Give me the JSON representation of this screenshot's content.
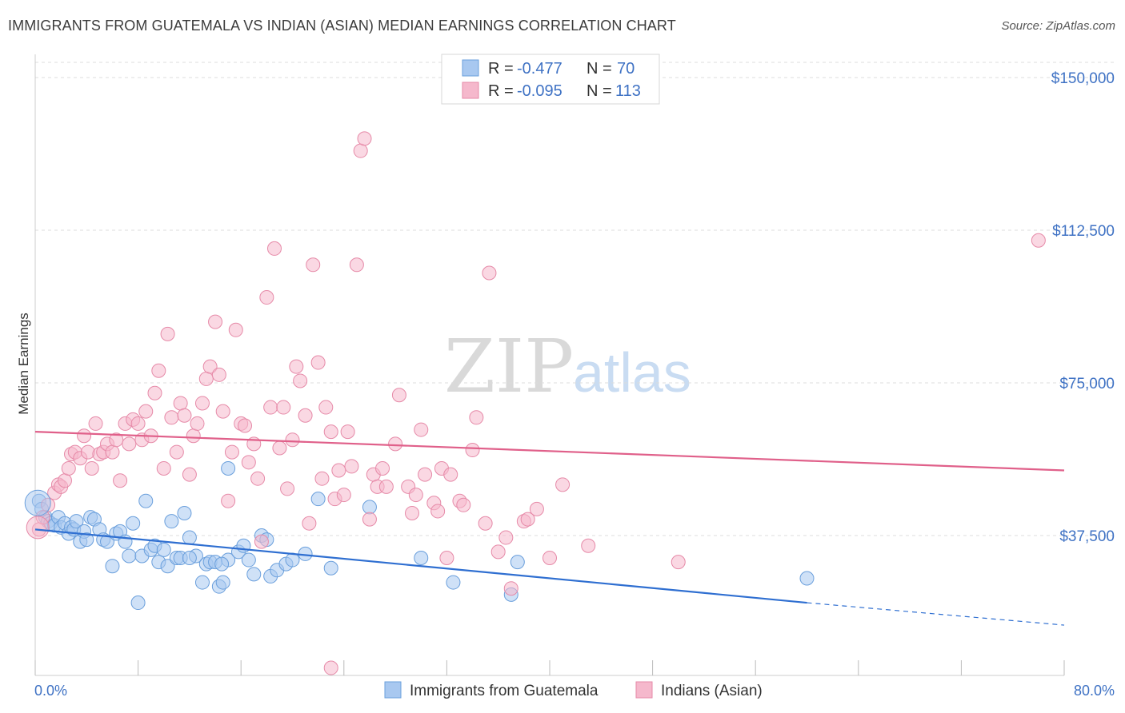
{
  "header": {
    "title": "IMMIGRANTS FROM GUATEMALA VS INDIAN (ASIAN) MEDIAN EARNINGS CORRELATION CHART",
    "source": "Source: ZipAtlas.com"
  },
  "watermark": {
    "zip": "ZIP",
    "atlas": "atlas"
  },
  "legend_top": [
    {
      "r_label": "R = ",
      "r_value": "-0.477",
      "n_label": "N = ",
      "n_value": "70",
      "color": "#a8c8f0"
    },
    {
      "r_label": "R = ",
      "r_value": "-0.095",
      "n_label": "N = ",
      "n_value": "113",
      "color": "#f5b8cc"
    }
  ],
  "legend_bottom": [
    {
      "label": "Immigrants from Guatemala",
      "color": "#a8c8f0"
    },
    {
      "label": "Indians (Asian)",
      "color": "#f5b8cc"
    }
  ],
  "chart_data": {
    "type": "scatter",
    "title": "IMMIGRANTS FROM GUATEMALA VS INDIAN (ASIAN) MEDIAN EARNINGS CORRELATION CHART",
    "xlabel": "",
    "ylabel": "Median Earnings",
    "xlim": [
      0,
      80
    ],
    "ylim": [
      0,
      160000
    ],
    "x_tick_labels": [
      "0.0%",
      "80.0%"
    ],
    "y_ticks": [
      37500,
      75000,
      112500,
      150000
    ],
    "y_tick_labels": [
      "$37,500",
      "$75,000",
      "$112,500",
      "$150,000"
    ],
    "grid": true,
    "series": [
      {
        "name": "Immigrants from Guatemala",
        "color": "#a8c8f0",
        "stroke": "#6a9fdc",
        "trend_color": "#2f6fd1",
        "trend": {
          "x0": 0,
          "y0": 39000,
          "x1": 60,
          "y1": 21000,
          "dashed_to_x": 80,
          "dashed_to_y": 15500
        },
        "points": [
          [
            0.3,
            46000
          ],
          [
            0.5,
            44000
          ],
          [
            0.8,
            42000
          ],
          [
            1.0,
            41000
          ],
          [
            1.2,
            40500
          ],
          [
            1.5,
            40000
          ],
          [
            1.8,
            42000
          ],
          [
            2.0,
            39500
          ],
          [
            2.3,
            40500
          ],
          [
            2.6,
            38000
          ],
          [
            2.8,
            39500
          ],
          [
            3.0,
            39000
          ],
          [
            3.2,
            41000
          ],
          [
            3.5,
            36000
          ],
          [
            3.8,
            38500
          ],
          [
            4.0,
            36500
          ],
          [
            4.3,
            42000
          ],
          [
            4.6,
            41500
          ],
          [
            5.0,
            39000
          ],
          [
            5.3,
            36500
          ],
          [
            5.6,
            36000
          ],
          [
            6.0,
            30000
          ],
          [
            6.3,
            38000
          ],
          [
            6.6,
            38500
          ],
          [
            7.0,
            36000
          ],
          [
            7.3,
            32500
          ],
          [
            7.6,
            40500
          ],
          [
            8.0,
            21000
          ],
          [
            8.3,
            32500
          ],
          [
            8.6,
            46000
          ],
          [
            9.0,
            34000
          ],
          [
            9.3,
            35000
          ],
          [
            9.6,
            31000
          ],
          [
            10.0,
            34000
          ],
          [
            10.3,
            30000
          ],
          [
            10.6,
            41000
          ],
          [
            11.0,
            32000
          ],
          [
            11.3,
            32000
          ],
          [
            11.6,
            43000
          ],
          [
            12.0,
            37000
          ],
          [
            12.5,
            32500
          ],
          [
            13.0,
            26000
          ],
          [
            13.3,
            30500
          ],
          [
            13.6,
            31000
          ],
          [
            14.0,
            31000
          ],
          [
            14.3,
            25000
          ],
          [
            14.6,
            26000
          ],
          [
            15.0,
            31500
          ],
          [
            15.8,
            33500
          ],
          [
            16.2,
            35000
          ],
          [
            16.6,
            31500
          ],
          [
            17.0,
            28000
          ],
          [
            17.6,
            37500
          ],
          [
            18.0,
            36500
          ],
          [
            18.3,
            27500
          ],
          [
            18.8,
            29000
          ],
          [
            19.5,
            30500
          ],
          [
            20.0,
            31500
          ],
          [
            21.0,
            33000
          ],
          [
            22.0,
            46500
          ],
          [
            23.0,
            29500
          ],
          [
            26.0,
            44500
          ],
          [
            30.0,
            32000
          ],
          [
            32.5,
            26000
          ],
          [
            37.0,
            23000
          ],
          [
            37.5,
            31000
          ],
          [
            60.0,
            27000
          ],
          [
            15.0,
            54000
          ],
          [
            12.0,
            32000
          ],
          [
            14.5,
            30500
          ]
        ]
      },
      {
        "name": "Indians (Asian)",
        "color": "#f5b8cc",
        "stroke": "#e68aa8",
        "trend_color": "#e0608a",
        "trend": {
          "x0": 0,
          "y0": 63000,
          "x1": 80,
          "y1": 53500
        },
        "points": [
          [
            0.3,
            39000
          ],
          [
            0.6,
            42000
          ],
          [
            1.0,
            45000
          ],
          [
            1.5,
            48000
          ],
          [
            1.8,
            50000
          ],
          [
            2.0,
            49500
          ],
          [
            2.3,
            51000
          ],
          [
            2.6,
            54000
          ],
          [
            2.8,
            57500
          ],
          [
            3.1,
            58000
          ],
          [
            3.5,
            56500
          ],
          [
            3.8,
            62000
          ],
          [
            4.1,
            58000
          ],
          [
            4.4,
            54000
          ],
          [
            4.7,
            65000
          ],
          [
            5.0,
            57500
          ],
          [
            5.3,
            58000
          ],
          [
            5.6,
            60000
          ],
          [
            6.0,
            58000
          ],
          [
            6.3,
            61000
          ],
          [
            6.6,
            51000
          ],
          [
            7.0,
            65000
          ],
          [
            7.3,
            60000
          ],
          [
            7.6,
            66000
          ],
          [
            8.0,
            65000
          ],
          [
            8.3,
            61000
          ],
          [
            8.6,
            68000
          ],
          [
            9.0,
            62000
          ],
          [
            9.3,
            72500
          ],
          [
            9.6,
            78000
          ],
          [
            10.0,
            54000
          ],
          [
            10.3,
            87000
          ],
          [
            10.6,
            66500
          ],
          [
            11.0,
            58000
          ],
          [
            11.3,
            70000
          ],
          [
            11.6,
            67000
          ],
          [
            12.0,
            52500
          ],
          [
            12.3,
            62000
          ],
          [
            12.6,
            65000
          ],
          [
            13.0,
            70000
          ],
          [
            13.3,
            76000
          ],
          [
            13.6,
            79000
          ],
          [
            14.0,
            90000
          ],
          [
            14.3,
            77000
          ],
          [
            14.6,
            68000
          ],
          [
            15.0,
            46000
          ],
          [
            15.3,
            58000
          ],
          [
            15.6,
            88000
          ],
          [
            16.0,
            65000
          ],
          [
            16.3,
            64500
          ],
          [
            16.6,
            55500
          ],
          [
            17.0,
            60000
          ],
          [
            17.3,
            51500
          ],
          [
            17.6,
            36000
          ],
          [
            18.0,
            96000
          ],
          [
            18.3,
            69000
          ],
          [
            18.6,
            108000
          ],
          [
            19.0,
            59000
          ],
          [
            19.3,
            69000
          ],
          [
            19.6,
            49000
          ],
          [
            20.0,
            61000
          ],
          [
            20.3,
            79000
          ],
          [
            20.6,
            75500
          ],
          [
            21.0,
            67000
          ],
          [
            21.3,
            40500
          ],
          [
            21.6,
            104000
          ],
          [
            22.0,
            80000
          ],
          [
            22.3,
            51500
          ],
          [
            22.6,
            69000
          ],
          [
            23.0,
            63000
          ],
          [
            23.3,
            46500
          ],
          [
            23.6,
            53500
          ],
          [
            24.0,
            47500
          ],
          [
            24.3,
            63000
          ],
          [
            24.6,
            54500
          ],
          [
            25.0,
            104000
          ],
          [
            25.3,
            132000
          ],
          [
            25.6,
            135000
          ],
          [
            26.0,
            41500
          ],
          [
            26.3,
            52500
          ],
          [
            26.6,
            49500
          ],
          [
            27.0,
            54000
          ],
          [
            27.3,
            49500
          ],
          [
            28.0,
            60000
          ],
          [
            28.3,
            72000
          ],
          [
            29.0,
            49500
          ],
          [
            29.3,
            43000
          ],
          [
            29.6,
            47500
          ],
          [
            30.0,
            63500
          ],
          [
            30.3,
            52500
          ],
          [
            31.0,
            45500
          ],
          [
            31.3,
            43500
          ],
          [
            31.6,
            54000
          ],
          [
            32.0,
            32000
          ],
          [
            32.3,
            52500
          ],
          [
            33.0,
            46000
          ],
          [
            33.3,
            45000
          ],
          [
            34.0,
            58500
          ],
          [
            34.3,
            66500
          ],
          [
            35.0,
            40500
          ],
          [
            35.3,
            102000
          ],
          [
            36.0,
            33500
          ],
          [
            36.6,
            37000
          ],
          [
            37.0,
            24500
          ],
          [
            38.0,
            41000
          ],
          [
            38.3,
            41500
          ],
          [
            39.0,
            44000
          ],
          [
            40.0,
            32000
          ],
          [
            41.0,
            50000
          ],
          [
            43.0,
            35000
          ],
          [
            50.0,
            31000
          ],
          [
            78.0,
            110000
          ],
          [
            23.0,
            5000
          ]
        ]
      }
    ]
  }
}
